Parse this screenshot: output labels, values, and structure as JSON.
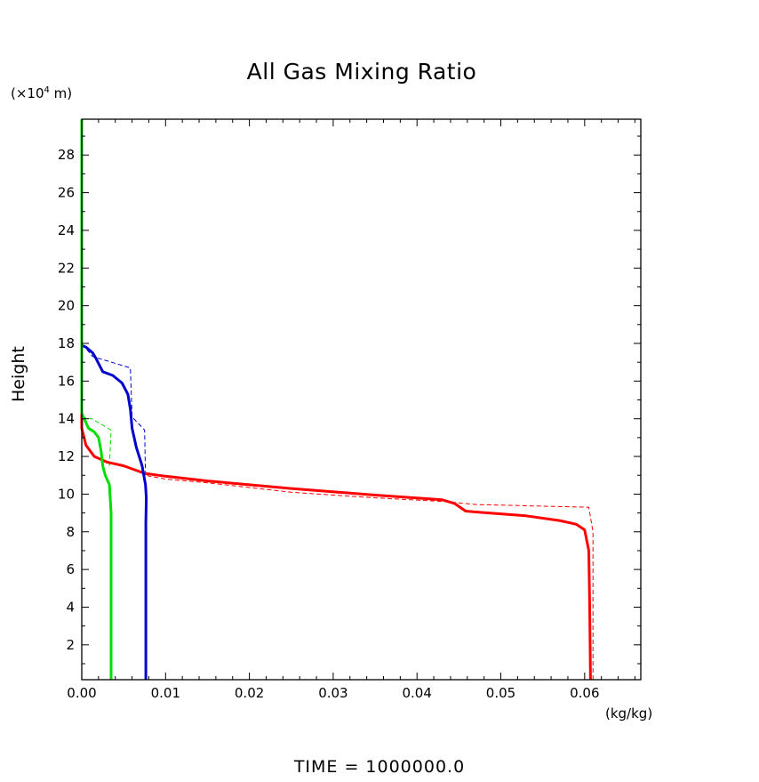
{
  "chart_data": {
    "type": "line",
    "title": "All Gas Mixing Ratio",
    "xlabel": "(kg/kg)",
    "ylabel": "Height",
    "y_unit": "(×10",
    "y_unit_exp": "4",
    "y_unit_suffix": " m)",
    "footer": "TIME = 1000000.0",
    "xlim": [
      0.0,
      0.0667
    ],
    "ylim": [
      0.15,
      29.9
    ],
    "x_ticks": [
      0.0,
      0.01,
      0.02,
      0.03,
      0.04,
      0.05,
      0.06
    ],
    "x_tick_labels": [
      "0.00",
      "0.01",
      "0.02",
      "0.03",
      "0.04",
      "0.05",
      "0.06"
    ],
    "y_ticks": [
      2,
      4,
      6,
      8,
      10,
      12,
      14,
      16,
      18,
      20,
      22,
      24,
      26,
      28
    ],
    "grid": false,
    "series": [
      {
        "color": "#ff0000",
        "style": "solid",
        "width": 3,
        "x": [
          0.0607,
          0.0606,
          0.0605,
          0.06,
          0.059,
          0.057,
          0.053,
          0.047,
          0.0458,
          0.0445,
          0.043,
          0.035,
          0.025,
          0.015,
          0.01,
          0.0075,
          0.005,
          0.003,
          0.0015,
          0.0005,
          0.0,
          0.0
        ],
        "y": [
          0.15,
          4.0,
          7.0,
          8.1,
          8.4,
          8.6,
          8.85,
          9.05,
          9.1,
          9.5,
          9.7,
          9.95,
          10.3,
          10.7,
          10.95,
          11.1,
          11.5,
          11.7,
          12.0,
          12.6,
          13.5,
          15.0
        ]
      },
      {
        "color": "#ff0000",
        "style": "dashed",
        "width": 1,
        "x": [
          0.061,
          0.061,
          0.0605,
          0.047,
          0.0435,
          0.035,
          0.025,
          0.015,
          0.01,
          0.0075
        ],
        "y": [
          0.15,
          8.0,
          9.3,
          9.45,
          9.6,
          9.8,
          10.1,
          10.6,
          10.8,
          11.0
        ]
      },
      {
        "color": "#0000cc",
        "style": "solid",
        "width": 3,
        "x": [
          0.00765,
          0.00765,
          0.0077,
          0.0076,
          0.0072,
          0.0065,
          0.006,
          0.0058,
          0.0055,
          0.0048,
          0.0037,
          0.0025,
          0.0017,
          0.0013,
          0.0005,
          0.0,
          0.0
        ],
        "y": [
          0.15,
          8.5,
          9.8,
          10.5,
          11.5,
          12.5,
          13.5,
          14.5,
          15.3,
          15.9,
          16.3,
          16.5,
          17.2,
          17.5,
          17.8,
          17.9,
          18.2
        ]
      },
      {
        "color": "#0000cc",
        "style": "dashed",
        "width": 1,
        "x": [
          0.0076,
          0.0075,
          0.006,
          0.0058,
          0.0013,
          0.0
        ],
        "y": [
          11.0,
          13.4,
          14.1,
          16.7,
          17.3,
          18.0
        ]
      },
      {
        "color": "#00dd00",
        "style": "solid",
        "width": 3,
        "x": [
          0.0035,
          0.0035,
          0.0033,
          0.0028,
          0.0025,
          0.0023,
          0.002,
          0.0015,
          0.0008,
          0.0005,
          0.0002,
          0.0,
          0.0,
          0.0
        ],
        "y": [
          0.15,
          9.0,
          10.5,
          11.0,
          11.5,
          12.3,
          13.0,
          13.3,
          13.5,
          13.8,
          14.1,
          14.3,
          15.0,
          29.9
        ]
      },
      {
        "color": "#00dd00",
        "style": "dashed",
        "width": 1,
        "x": [
          0.0033,
          0.0035,
          0.0012,
          0.0
        ],
        "y": [
          11.5,
          13.4,
          14.0,
          14.1
        ]
      }
    ]
  }
}
